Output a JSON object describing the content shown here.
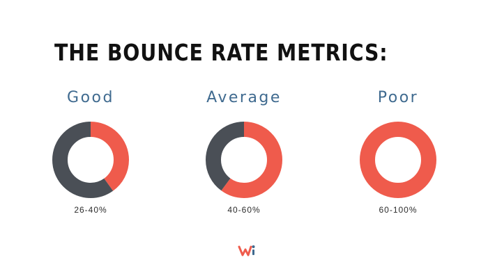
{
  "title": "THE BOUNCE RATE METRICS:",
  "colors": {
    "accent": "#ef5b4c",
    "dark": "#4a4f56",
    "label": "#3f6a8f"
  },
  "chart_data": [
    {
      "type": "pie",
      "title": "Good",
      "range_label": "26-40%",
      "values": [
        40,
        60
      ],
      "colors": [
        "#ef5b4c",
        "#4a4f56"
      ]
    },
    {
      "type": "pie",
      "title": "Average",
      "range_label": "40-60%",
      "values": [
        60,
        40
      ],
      "colors": [
        "#ef5b4c",
        "#4a4f56"
      ]
    },
    {
      "type": "pie",
      "title": "Poor",
      "range_label": "60-100%",
      "values": [
        100,
        0
      ],
      "colors": [
        "#ef5b4c",
        "#4a4f56"
      ]
    }
  ],
  "logo": {
    "icon": "brand-logo-icon"
  }
}
